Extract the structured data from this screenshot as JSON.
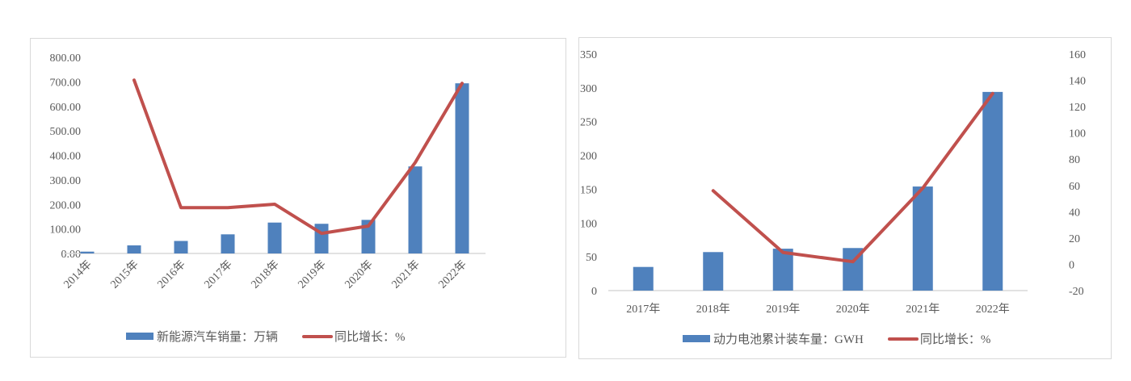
{
  "colors": {
    "bar": "#4f81bd",
    "line": "#c0504d",
    "axis": "#d9d9d9",
    "text": "#595959"
  },
  "chart_data": [
    {
      "type": "bar+line",
      "title": "",
      "categories": [
        "2014年",
        "2015年",
        "2016年",
        "2017年",
        "2018年",
        "2019年",
        "2020年",
        "2021年",
        "2022年"
      ],
      "series": [
        {
          "name": "新能源汽车销量：万辆",
          "type": "bar",
          "axis": "left",
          "values": [
            7.5,
            33,
            51,
            78,
            126,
            121,
            137,
            355,
            694
          ]
        },
        {
          "name": "同比增长：%",
          "type": "line",
          "axis": "left",
          "values": [
            null,
            707,
            187,
            187,
            201,
            82,
            112,
            371,
            694
          ]
        }
      ],
      "y_left": {
        "min": 0,
        "max": 800,
        "ticks": [
          "0.00",
          "100.00",
          "200.00",
          "300.00",
          "400.00",
          "500.00",
          "600.00",
          "700.00",
          "800.00"
        ]
      },
      "x_labels_rotated": true,
      "grid": false,
      "legend_position": "bottom"
    },
    {
      "type": "bar+line",
      "title": "",
      "categories": [
        "2017年",
        "2018年",
        "2019年",
        "2020年",
        "2021年",
        "2022年"
      ],
      "series": [
        {
          "name": "动力电池累计装车量：GWH",
          "type": "bar",
          "axis": "left",
          "values": [
            35,
            57,
            62,
            63,
            154,
            294
          ]
        },
        {
          "name": "同比增长：%",
          "type": "line",
          "axis": "right",
          "values": [
            null,
            56,
            9,
            2,
            58,
            130
          ]
        }
      ],
      "y_left": {
        "min": 0,
        "max": 350,
        "ticks": [
          "0",
          "50",
          "100",
          "150",
          "200",
          "250",
          "300",
          "350"
        ]
      },
      "y_right": {
        "min": -20,
        "max": 160,
        "ticks": [
          "-20",
          "0",
          "20",
          "40",
          "60",
          "80",
          "100",
          "120",
          "140",
          "160"
        ]
      },
      "x_labels_rotated": false,
      "grid": false,
      "legend_position": "bottom"
    }
  ],
  "legend1": {
    "bar_label": "新能源汽车销量：万辆",
    "line_label": "同比增长：%"
  },
  "legend2": {
    "bar_label": "动力电池累计装车量：GWH",
    "line_label": "同比增长：%"
  }
}
